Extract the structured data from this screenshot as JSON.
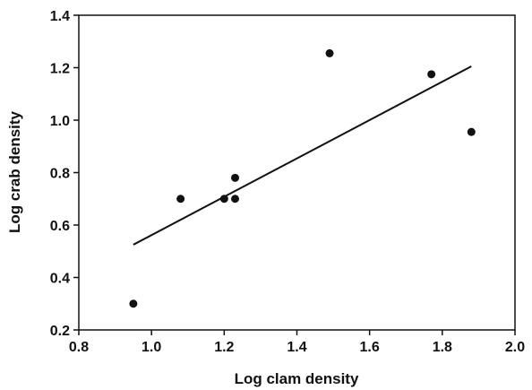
{
  "chart_data": {
    "type": "scatter",
    "title": "",
    "xlabel": "Log clam density",
    "ylabel": "Log crab density",
    "xlim": [
      0.8,
      2.0
    ],
    "ylim": [
      0.2,
      1.4
    ],
    "x_ticks": [
      "0.8",
      "1.0",
      "1.2",
      "1.4",
      "1.6",
      "1.8",
      "2.0"
    ],
    "y_ticks": [
      "0.2",
      "0.4",
      "0.6",
      "0.8",
      "1.0",
      "1.2",
      "1.4"
    ],
    "grid": false,
    "legend": "none",
    "marker_color": "#111111",
    "points": [
      {
        "x": 0.95,
        "y": 0.3
      },
      {
        "x": 1.08,
        "y": 0.7
      },
      {
        "x": 1.2,
        "y": 0.7
      },
      {
        "x": 1.23,
        "y": 0.78
      },
      {
        "x": 1.23,
        "y": 0.7
      },
      {
        "x": 1.49,
        "y": 1.255
      },
      {
        "x": 1.77,
        "y": 1.175
      },
      {
        "x": 1.88,
        "y": 0.955
      }
    ],
    "trendline": {
      "type": "linear",
      "x": [
        0.95,
        1.88
      ],
      "y": [
        0.525,
        1.205
      ]
    }
  }
}
